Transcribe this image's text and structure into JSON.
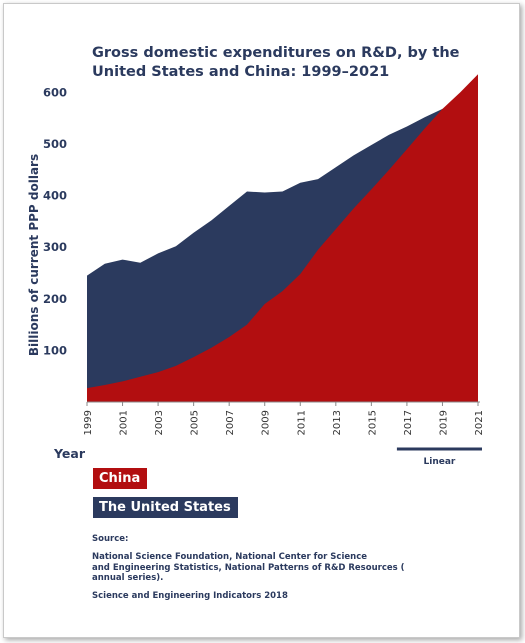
{
  "title_lines": [
    "Gross domestic expenditures on R&D, by the",
    "United States and China: 1999–2021"
  ],
  "legend": {
    "china": "China",
    "us": "The United States"
  },
  "source": {
    "label": "Source:",
    "lines": [
      "National Science Foundation, National Center for Science",
      "and Engineering Statistics, National Patterns of R&D Resources (",
      "annual series)."
    ],
    "indicators": "Science and Engineering Indicators 2018"
  },
  "colors": {
    "china": "#b20e10",
    "us": "#2b3a5e",
    "axis_text": "#2b3a5e",
    "tick_text": "#333333"
  },
  "chart_data": {
    "type": "area",
    "title": "Gross domestic expenditures on R&D, by the United States and China: 1999–2021",
    "ylabel": "Billions of current PPP dollars",
    "xlabel": "Year",
    "ylim": [
      0,
      600
    ],
    "xlim": [
      1999,
      2021
    ],
    "yticks": [
      100,
      200,
      300,
      400,
      500,
      600
    ],
    "xticks": [
      "1999",
      "2001",
      "2003",
      "2005",
      "2007",
      "2009",
      "2011",
      "2013",
      "2015",
      "2017",
      "2019",
      "2021"
    ],
    "projection_label": "Linear",
    "projection_range": [
      2017,
      2021
    ],
    "grid": false,
    "legend_position": "bottom-left",
    "series": [
      {
        "name": "The United States",
        "x": [
          1999,
          2000,
          2001,
          2002,
          2003,
          2004,
          2005,
          2006,
          2007,
          2008,
          2009,
          2010,
          2011,
          2012,
          2013,
          2014,
          2015,
          2016,
          2017,
          2018,
          2019,
          2020,
          2021
        ],
        "values": [
          245,
          268,
          276,
          270,
          288,
          302,
          328,
          352,
          380,
          408,
          406,
          408,
          425,
          432,
          455,
          478,
          498,
          518,
          534,
          552,
          568,
          582,
          595
        ]
      },
      {
        "name": "China",
        "x": [
          1999,
          2000,
          2001,
          2002,
          2003,
          2004,
          2005,
          2006,
          2007,
          2008,
          2009,
          2010,
          2011,
          2012,
          2013,
          2014,
          2015,
          2016,
          2017,
          2018,
          2019,
          2020,
          2021
        ],
        "values": [
          27,
          33,
          40,
          49,
          58,
          70,
          87,
          105,
          126,
          150,
          190,
          215,
          248,
          295,
          335,
          375,
          412,
          450,
          490,
          530,
          568,
          600,
          635
        ]
      }
    ]
  }
}
